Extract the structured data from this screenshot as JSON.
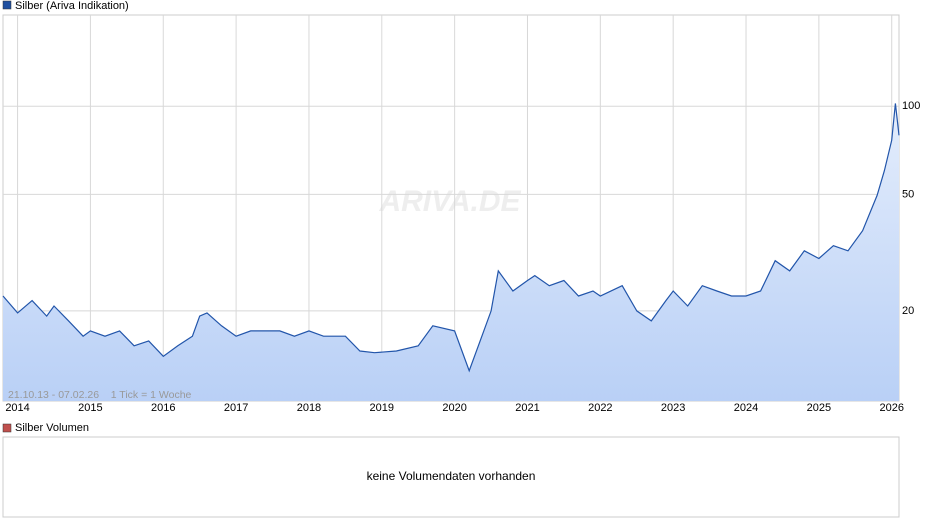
{
  "chart_data": {
    "type": "area",
    "title": "Silber (Ariva Indikation)",
    "annotation": "21.10.13 - 07.02.26    1 Tick = 1 Woche",
    "watermark": "ARIVA.DE",
    "log_scale": true,
    "grid": true,
    "x": [
      2013.8,
      2014.0,
      2014.2,
      2014.4,
      2014.5,
      2014.7,
      2014.9,
      2015.0,
      2015.2,
      2015.4,
      2015.6,
      2015.8,
      2016.0,
      2016.2,
      2016.4,
      2016.5,
      2016.6,
      2016.8,
      2017.0,
      2017.2,
      2017.4,
      2017.6,
      2017.8,
      2018.0,
      2018.2,
      2018.5,
      2018.7,
      2018.9,
      2019.2,
      2019.5,
      2019.7,
      2020.0,
      2020.2,
      2020.4,
      2020.5,
      2020.6,
      2020.8,
      2021.0,
      2021.1,
      2021.3,
      2021.5,
      2021.7,
      2021.9,
      2022.0,
      2022.3,
      2022.5,
      2022.7,
      2022.9,
      2023.0,
      2023.2,
      2023.4,
      2023.6,
      2023.8,
      2024.0,
      2024.2,
      2024.4,
      2024.6,
      2024.8,
      2025.0,
      2025.2,
      2025.4,
      2025.6,
      2025.8,
      2025.9,
      2026.0,
      2026.05,
      2026.1
    ],
    "series": [
      {
        "name": "Silber (Ariva Indikation)",
        "color": "#2255aa",
        "values": [
          22.5,
          19.7,
          21.7,
          19.2,
          20.8,
          18.5,
          16.4,
          17.1,
          16.4,
          17.1,
          15.2,
          15.8,
          14.0,
          15.2,
          16.4,
          19.2,
          19.7,
          17.8,
          16.4,
          17.1,
          17.1,
          17.1,
          16.4,
          17.1,
          16.4,
          16.4,
          14.6,
          14.4,
          14.6,
          15.2,
          17.8,
          17.1,
          12.5,
          17.1,
          20.0,
          27.4,
          23.4,
          25.4,
          26.4,
          24.4,
          25.4,
          22.5,
          23.4,
          22.5,
          24.4,
          20.0,
          18.5,
          21.7,
          23.4,
          20.8,
          24.4,
          23.4,
          22.5,
          22.5,
          23.4,
          29.7,
          27.4,
          32.1,
          30.2,
          33.4,
          32.1,
          37.6,
          49.6,
          60.3,
          76.5,
          102.3,
          79.6
        ]
      }
    ],
    "xlim": [
      2013.8,
      2026.1
    ],
    "xticks": [
      2014,
      2015,
      2016,
      2017,
      2018,
      2019,
      2020,
      2021,
      2022,
      2023,
      2024,
      2025,
      2026
    ],
    "ylim": [
      9.85,
      205
    ],
    "yticks": [
      20,
      50,
      100
    ],
    "volume": {
      "title": "Silber Volumen",
      "color": "#c0504d",
      "message": "keine Volumendaten vorhanden"
    }
  }
}
